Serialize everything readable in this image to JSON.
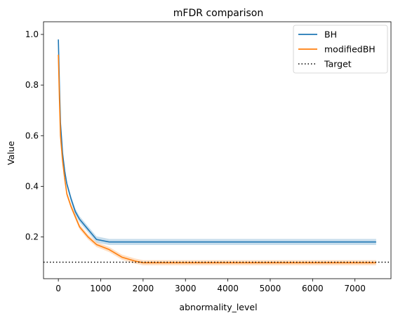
{
  "chart_data": {
    "type": "line",
    "title": "mFDR comparison",
    "xlabel": "abnormality_level",
    "ylabel": "Value",
    "xlim": [
      -350,
      7850
    ],
    "ylim": [
      0.035,
      1.05
    ],
    "x_ticks": [
      0,
      1000,
      2000,
      3000,
      4000,
      5000,
      6000,
      7000
    ],
    "y_ticks": [
      0.2,
      0.4,
      0.6,
      0.8,
      1.0
    ],
    "x_tick_labels": [
      "0",
      "1000",
      "2000",
      "3000",
      "4000",
      "5000",
      "6000",
      "7000"
    ],
    "y_tick_labels": [
      "0.2",
      "0.4",
      "0.6",
      "0.8",
      "1.0"
    ],
    "grid": false,
    "legend_position": "top-right",
    "series": [
      {
        "name": "BH",
        "color": "#1f77b4",
        "x": [
          0,
          25,
          50,
          100,
          150,
          200,
          300,
          400,
          500,
          700,
          900,
          1200,
          1500,
          2000,
          3000,
          4000,
          5000,
          6000,
          7000,
          7500
        ],
        "values": [
          0.98,
          0.8,
          0.65,
          0.53,
          0.46,
          0.41,
          0.35,
          0.3,
          0.27,
          0.23,
          0.19,
          0.18,
          0.18,
          0.18,
          0.18,
          0.18,
          0.18,
          0.18,
          0.18,
          0.18
        ],
        "band": 0.012
      },
      {
        "name": "modifiedBH",
        "color": "#ff7f0e",
        "x": [
          0,
          25,
          50,
          100,
          150,
          200,
          300,
          400,
          500,
          700,
          900,
          1200,
          1500,
          1800,
          2000,
          2500,
          3000,
          4000,
          5000,
          6000,
          7000,
          7500
        ],
        "values": [
          0.92,
          0.75,
          0.6,
          0.5,
          0.43,
          0.37,
          0.32,
          0.28,
          0.24,
          0.2,
          0.17,
          0.15,
          0.12,
          0.105,
          0.098,
          0.098,
          0.098,
          0.098,
          0.098,
          0.098,
          0.098,
          0.098
        ],
        "band": 0.01
      }
    ],
    "reference_line": {
      "name": "Target",
      "value": 0.1,
      "style": "dotted",
      "color": "#000000"
    }
  }
}
